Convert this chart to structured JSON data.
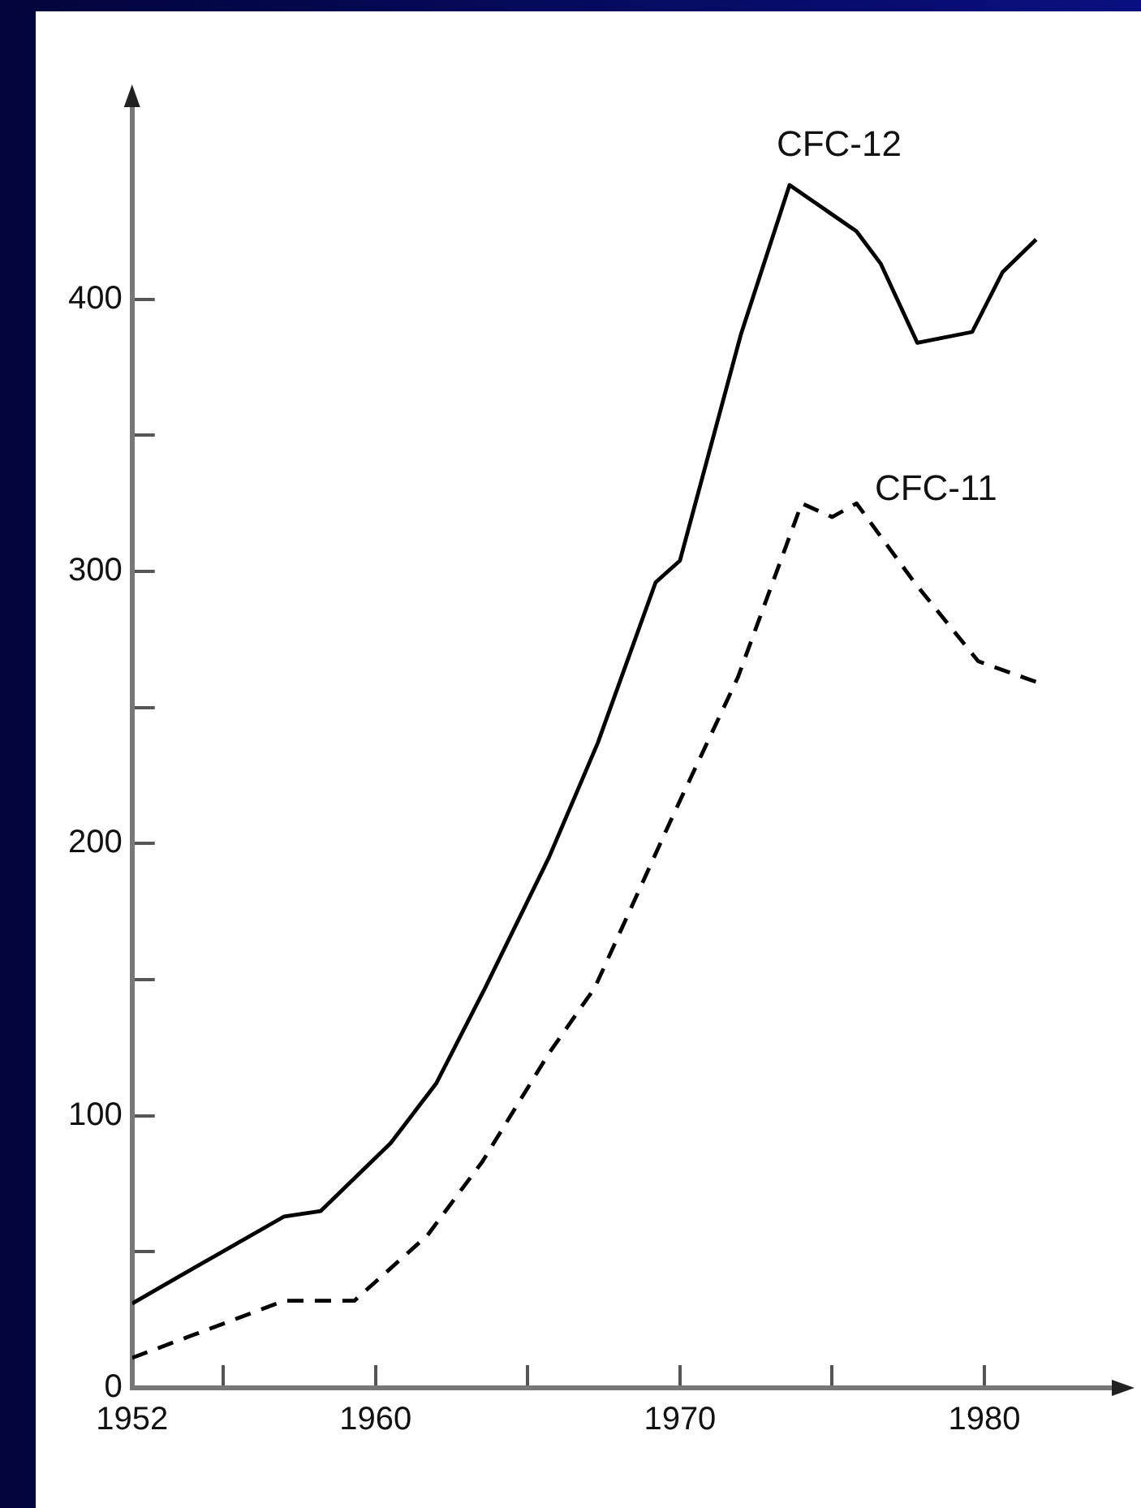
{
  "chart_data": {
    "type": "line",
    "xlim": [
      1952,
      1984.4
    ],
    "ylim": [
      0,
      473
    ],
    "xticks": [
      1952,
      {
        "value": 1955,
        "label": null
      },
      1960,
      {
        "value": 1965,
        "label": null
      },
      1970,
      {
        "value": 1975,
        "label": null
      },
      1980
    ],
    "yticks": [
      0,
      {
        "value": 50,
        "label": null
      },
      100,
      {
        "value": 150,
        "label": null
      },
      200,
      {
        "value": 250,
        "label": null
      },
      300,
      {
        "value": 350,
        "label": null
      },
      400
    ],
    "grid": false,
    "legend": false,
    "marker": "none",
    "series": [
      {
        "name": "CFC-12",
        "color": "#000000",
        "line_style": "solid",
        "x": [
          1952,
          1953.4,
          1957,
          1958.2,
          1960.5,
          1962,
          1963.6,
          1965.7,
          1967.3,
          1969.2,
          1970,
          1972,
          1973.6,
          1975.8,
          1976.6,
          1977.8,
          1979.6,
          1980.6,
          1981.7
        ],
        "values": [
          31,
          40,
          63,
          65,
          90,
          112,
          147,
          195,
          237,
          296,
          304,
          387,
          442,
          425,
          413,
          384,
          388,
          410,
          422
        ]
      },
      {
        "name": "CFC-11",
        "color": "#000000",
        "line_style": "dashed",
        "x": [
          1952,
          1953.9,
          1957,
          1959.3,
          1961.7,
          1963.5,
          1965.7,
          1967.2,
          1969.8,
          1971.9,
          1974,
          1975,
          1975.8,
          1977.7,
          1979.8,
          1981.8
        ],
        "values": [
          11,
          19,
          32,
          32,
          56,
          83,
          123,
          147,
          211,
          261,
          325,
          320,
          325,
          296,
          267,
          259
        ]
      }
    ]
  }
}
